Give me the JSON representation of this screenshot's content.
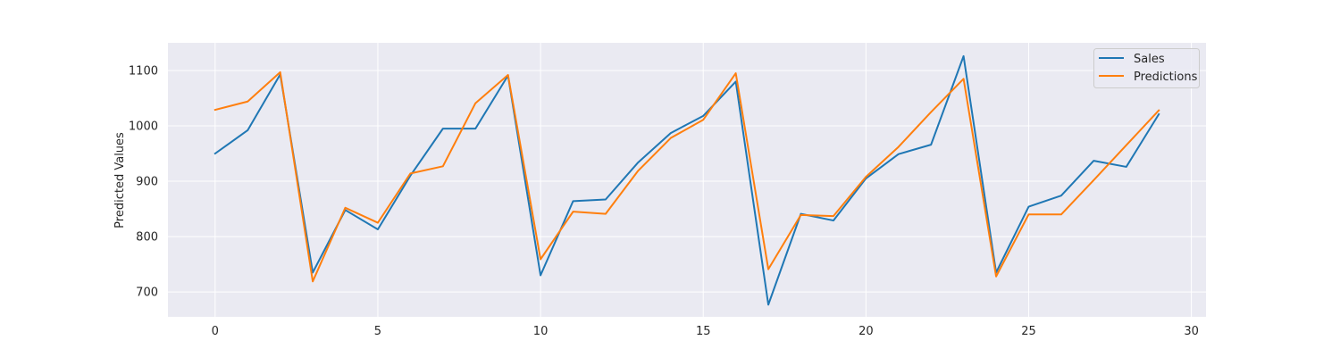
{
  "chart_data": {
    "type": "line",
    "title": "",
    "xlabel": "",
    "ylabel": "Predicted Values",
    "x": [
      0,
      1,
      2,
      3,
      4,
      5,
      6,
      7,
      8,
      9,
      10,
      11,
      12,
      13,
      14,
      15,
      16,
      17,
      18,
      19,
      20,
      21,
      22,
      23,
      24,
      25,
      26,
      27,
      28,
      29
    ],
    "xlim": [
      -1.45,
      30.45
    ],
    "ylim": [
      655,
      1150
    ],
    "xticks": [
      0,
      5,
      10,
      15,
      20,
      25,
      30
    ],
    "yticks": [
      700,
      800,
      900,
      1000,
      1100
    ],
    "xtick_labels": [
      "0",
      "5",
      "10",
      "15",
      "20",
      "25",
      "30"
    ],
    "ytick_labels": [
      "700",
      "800",
      "900",
      "1000",
      "1100"
    ],
    "grid": true,
    "legend_position": "top-right",
    "series": [
      {
        "name": "Sales",
        "color": "#1f77b4",
        "values": [
          950,
          992,
          1093,
          735,
          848,
          813,
          910,
          995,
          995,
          1091,
          730,
          864,
          867,
          934,
          987,
          1018,
          1080,
          677,
          841,
          829,
          905,
          949,
          966,
          1126,
          735,
          854,
          874,
          937,
          926,
          1021
        ]
      },
      {
        "name": "Predictions",
        "color": "#ff7f0e",
        "values": [
          1029,
          1044,
          1097,
          719,
          852,
          825,
          914,
          927,
          1041,
          1092,
          759,
          845,
          841,
          919,
          978,
          1011,
          1095,
          741,
          839,
          837,
          908,
          962,
          1025,
          1085,
          728,
          840,
          840,
          902,
          965,
          1028
        ]
      }
    ]
  }
}
